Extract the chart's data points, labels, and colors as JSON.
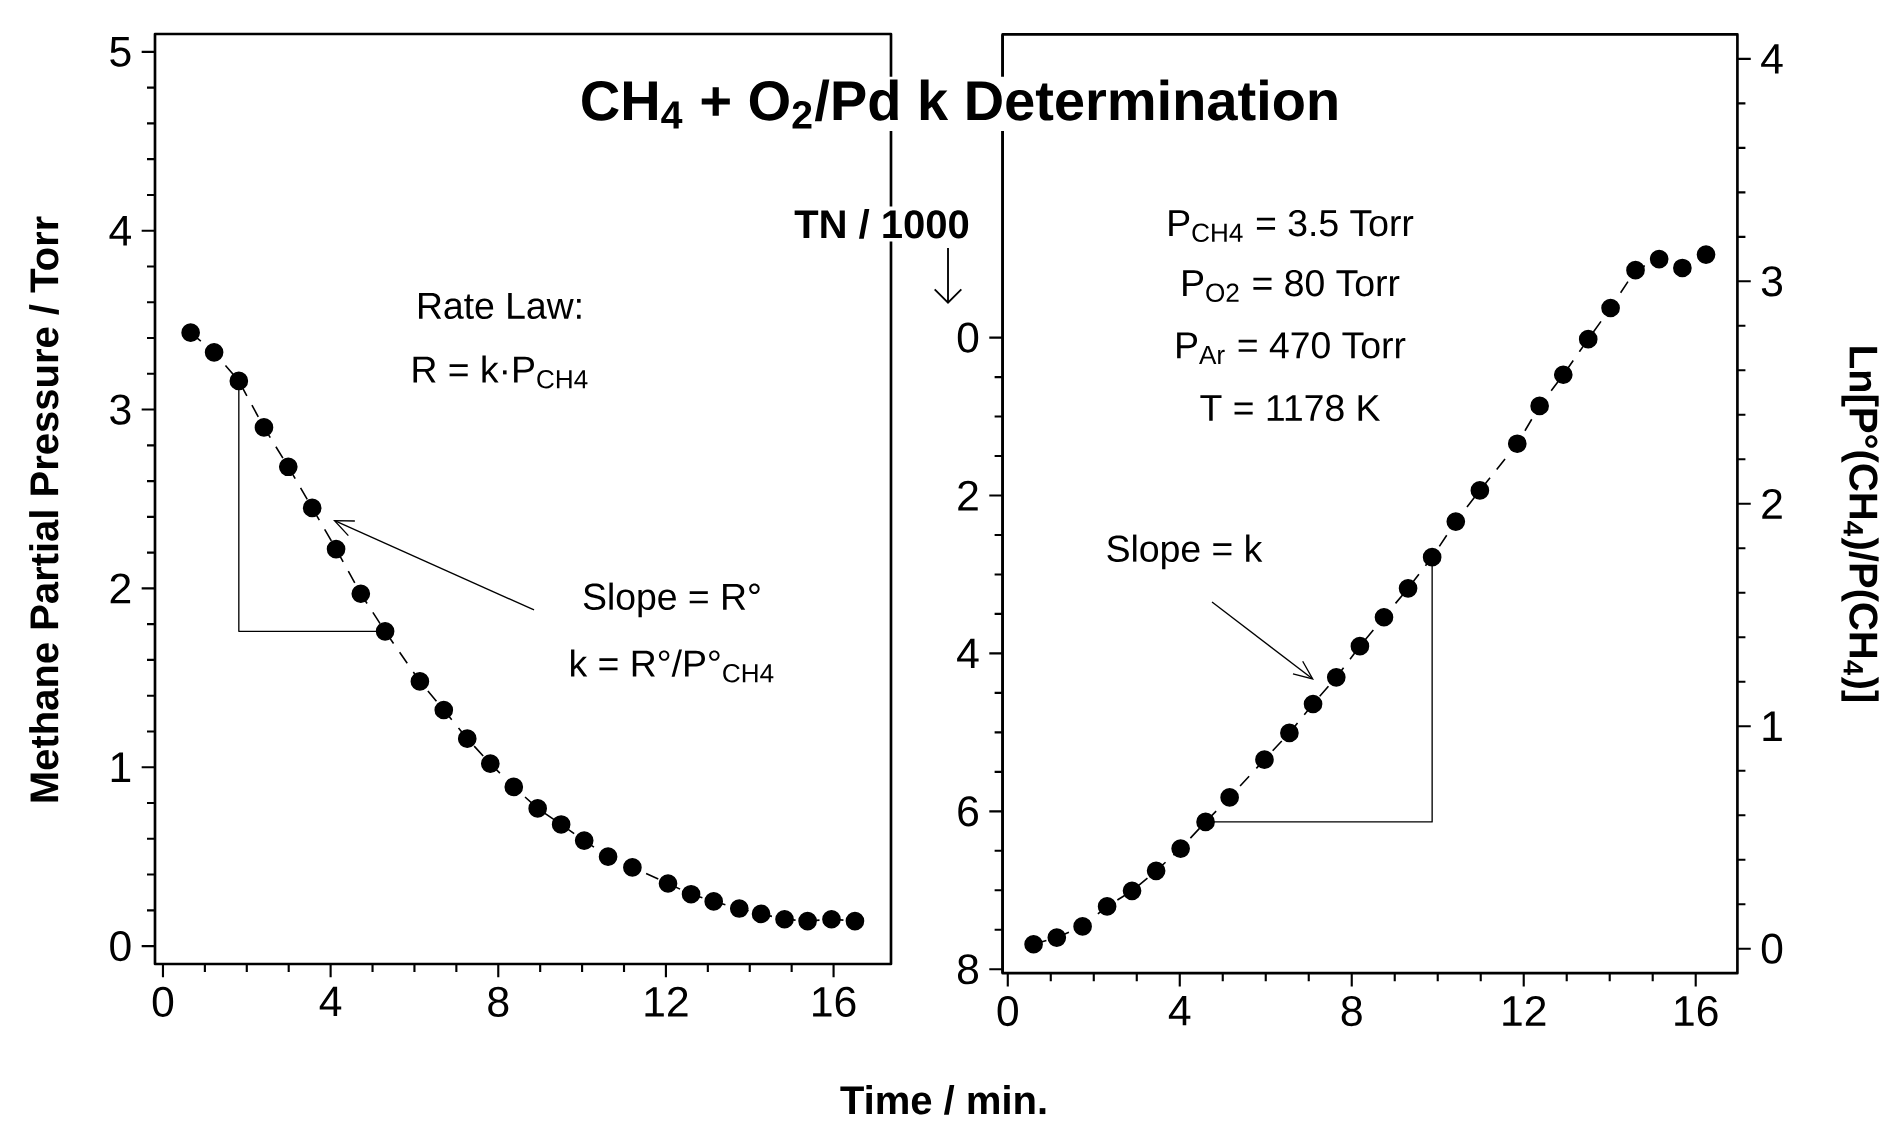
{
  "chart_data": [
    {
      "type": "line",
      "title": "CH$_{4}$ + O$_{2}$/Pd k Determination",
      "xlabel": "Time / min.",
      "ylabel": "Methane Partial Pressure / Torr",
      "xlim": [
        -0.19,
        17.37
      ],
      "xticks": [
        0,
        4,
        8,
        12,
        16
      ],
      "ylim": [
        -0.1,
        5.1
      ],
      "yticks": [
        0,
        1,
        2,
        3,
        4,
        5
      ],
      "marker": "circle",
      "line_style": "dashed",
      "series": [
        {
          "color": "#000000",
          "x": [
            0.66,
            1.22,
            1.81,
            2.41,
            2.99,
            3.56,
            4.13,
            4.72,
            5.3,
            6.13,
            6.7,
            7.26,
            7.81,
            8.37,
            8.94,
            9.5,
            10.05,
            10.62,
            11.2,
            12.05,
            12.6,
            13.14,
            13.75,
            14.27,
            14.83,
            15.38,
            15.95,
            16.51
          ],
          "values": [
            3.43,
            3.32,
            3.16,
            2.9,
            2.68,
            2.45,
            2.22,
            1.97,
            1.76,
            1.48,
            1.32,
            1.16,
            1.02,
            0.89,
            0.77,
            0.68,
            0.59,
            0.5,
            0.44,
            0.35,
            0.29,
            0.25,
            0.21,
            0.18,
            0.15,
            0.14,
            0.15,
            0.14
          ]
        }
      ],
      "annotations": [
        "Rate Law:",
        "R = k·P$_{CH4}$",
        "Slope = R°",
        "k = R°/P°$_{CH4}$"
      ]
    },
    {
      "type": "line",
      "ylabel": "Ln[P°(CH$_{4}$)/P(CH$_{4}$)]",
      "y2label": "TN / 1000",
      "xlim": [
        -0.12,
        16.97
      ],
      "xticks": [
        0,
        4,
        8,
        12,
        16
      ],
      "ylim": [
        -0.11,
        4.11
      ],
      "yticks": [
        0,
        1,
        2,
        3,
        4
      ],
      "y2lim": [
        8.05,
        -3.84
      ],
      "y2ticks": [
        0,
        2,
        4,
        6,
        8
      ],
      "marker": "circle",
      "line_style": "dashed",
      "series": [
        {
          "color": "#000000",
          "x": [
            0.6,
            1.14,
            1.74,
            2.31,
            2.89,
            3.45,
            4.02,
            4.6,
            5.16,
            5.97,
            6.55,
            7.1,
            7.64,
            8.19,
            8.75,
            9.31,
            9.87,
            10.42,
            10.98,
            11.85,
            12.37,
            12.92,
            13.5,
            14.02,
            14.6,
            15.15,
            15.69,
            16.24
          ],
          "values": [
            0.02,
            0.05,
            0.1,
            0.19,
            0.26,
            0.35,
            0.45,
            0.57,
            0.68,
            0.85,
            0.97,
            1.1,
            1.22,
            1.36,
            1.49,
            1.62,
            1.76,
            1.92,
            2.06,
            2.27,
            2.44,
            2.58,
            2.74,
            2.88,
            3.05,
            3.1,
            3.06,
            3.12
          ]
        }
      ],
      "annotations": [
        "P$_{CH4}$ = 3.5 Torr",
        "P$_{O2}$ = 80 Torr",
        "P$_{Ar}$ = 470 Torr",
        "T = 1178 K",
        "Slope = k"
      ]
    }
  ]
}
